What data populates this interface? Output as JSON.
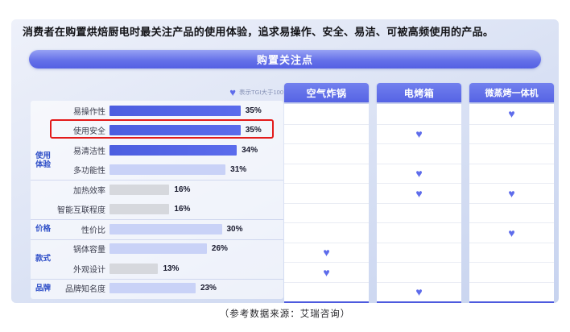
{
  "page": {
    "headline": "消费者在购置烘焙厨电时最关注产品的使用体验，追求易操作、安全、易洁、可被高频使用的产品。",
    "banner": "购置关注点",
    "legend": {
      "icon": "heart-icon",
      "label": "表示TGI大于100"
    },
    "source_note": "（参考数据来源：艾瑞咨询）"
  },
  "colors": {
    "accent": "#5563e4",
    "bar_dark": "#5263e3",
    "bar_light": "#c9d2f7",
    "bar_gray": "#d6d8dd",
    "heart": "#5e6ceb",
    "highlight_border": "#e31b1b",
    "group_label": "#3050c8"
  },
  "chart_data": {
    "type": "bar",
    "title": "购置关注点",
    "unit": "%",
    "orientation": "horizontal",
    "xlim": [
      0,
      40
    ],
    "grid": false,
    "legend_note": "表示TGI大于100",
    "columns": [
      "空气炸锅",
      "电烤箱",
      "微蒸烤一体机"
    ],
    "groups": [
      {
        "label": "使用\n体验",
        "span": 6
      },
      {
        "label": "价格",
        "span": 1
      },
      {
        "label": "款式",
        "span": 2
      },
      {
        "label": "品牌",
        "span": 1
      }
    ],
    "dividers_after_rows": [
      4,
      6,
      7,
      9
    ],
    "rows": [
      {
        "label": "易操作性",
        "value": 35,
        "tone": "dark",
        "highlight": false,
        "hearts": [
          false,
          false,
          true
        ]
      },
      {
        "label": "使用安全",
        "value": 35,
        "tone": "dark",
        "highlight": true,
        "hearts": [
          false,
          true,
          false
        ]
      },
      {
        "label": "易清洁性",
        "value": 34,
        "tone": "dark",
        "highlight": false,
        "hearts": [
          false,
          false,
          false
        ]
      },
      {
        "label": "多功能性",
        "value": 31,
        "tone": "light",
        "highlight": false,
        "hearts": [
          false,
          true,
          false
        ]
      },
      {
        "label": "加热效率",
        "value": 16,
        "tone": "gray",
        "highlight": false,
        "hearts": [
          false,
          true,
          true
        ]
      },
      {
        "label": "智能互联程度",
        "value": 16,
        "tone": "gray",
        "highlight": false,
        "hearts": [
          false,
          false,
          false
        ]
      },
      {
        "label": "性价比",
        "value": 30,
        "tone": "light",
        "highlight": false,
        "hearts": [
          false,
          false,
          true
        ]
      },
      {
        "label": "锅体容量",
        "value": 26,
        "tone": "light",
        "highlight": false,
        "hearts": [
          true,
          false,
          false
        ]
      },
      {
        "label": "外观设计",
        "value": 13,
        "tone": "gray",
        "highlight": false,
        "hearts": [
          true,
          false,
          false
        ]
      },
      {
        "label": "品牌知名度",
        "value": 23,
        "tone": "light",
        "highlight": false,
        "hearts": [
          false,
          true,
          false
        ]
      }
    ]
  }
}
